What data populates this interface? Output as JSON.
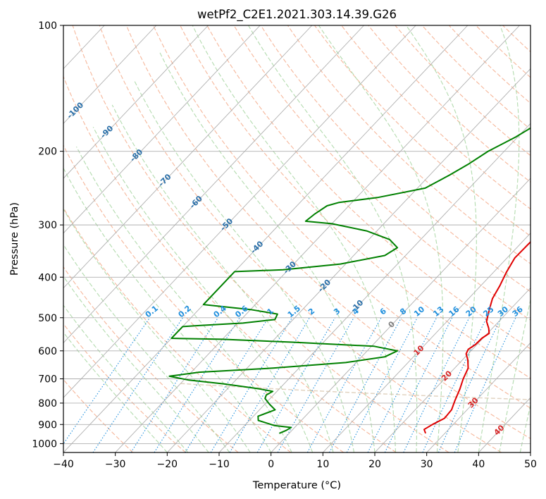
{
  "chart_data": {
    "type": "line",
    "subtype": "skew-T log-P thermodynamic diagram",
    "title": "wetPf2_C2E1.2021.303.14.39.G26",
    "xlabel": "Temperature (°C)",
    "ylabel": "Pressure (hPa)",
    "xlim": [
      -40,
      50
    ],
    "ylim": [
      1050,
      100
    ],
    "y_scale": "log",
    "x_ticks": [
      "−40",
      "−30",
      "−20",
      "−10",
      "0",
      "10",
      "20",
      "30",
      "40",
      "50"
    ],
    "y_ticks": [
      {
        "p": 100,
        "label": "100"
      },
      {
        "p": 200,
        "label": "200"
      },
      {
        "p": 300,
        "label": "300"
      },
      {
        "p": 400,
        "label": "400"
      },
      {
        "p": 500,
        "label": "500"
      },
      {
        "p": 600,
        "label": "600"
      },
      {
        "p": 700,
        "label": "700"
      },
      {
        "p": 800,
        "label": "800"
      },
      {
        "p": 900,
        "label": "900"
      },
      {
        "p": 1000,
        "label": "1000"
      }
    ],
    "grid": true,
    "legend": "none",
    "series": [
      {
        "role": "temperature",
        "color": "#e00000",
        "points": [
          {
            "p": 945,
            "t": 26.3
          },
          {
            "p": 925,
            "t": 25.3
          },
          {
            "p": 900,
            "t": 26.0
          },
          {
            "p": 870,
            "t": 27.2
          },
          {
            "p": 830,
            "t": 27.0
          },
          {
            "p": 790,
            "t": 26.0
          },
          {
            "p": 740,
            "t": 24.8
          },
          {
            "p": 700,
            "t": 23.6
          },
          {
            "p": 660,
            "t": 22.6
          },
          {
            "p": 630,
            "t": 21.0
          },
          {
            "p": 610,
            "t": 19.6
          },
          {
            "p": 595,
            "t": 19.2
          },
          {
            "p": 580,
            "t": 19.7
          },
          {
            "p": 560,
            "t": 19.8
          },
          {
            "p": 545,
            "t": 20.3
          },
          {
            "p": 530,
            "t": 19.3
          },
          {
            "p": 510,
            "t": 17.6
          },
          {
            "p": 490,
            "t": 16.6
          },
          {
            "p": 470,
            "t": 15.6
          },
          {
            "p": 450,
            "t": 14.6
          },
          {
            "p": 420,
            "t": 13.7
          },
          {
            "p": 390,
            "t": 12.5
          },
          {
            "p": 360,
            "t": 11.5
          },
          {
            "p": 330,
            "t": 11.6
          },
          {
            "p": 300,
            "t": 11.1
          },
          {
            "p": 270,
            "t": 10.6
          },
          {
            "p": 250,
            "t": 9.9
          },
          {
            "p": 230,
            "t": 8.3
          },
          {
            "p": 210,
            "t": 7.0
          },
          {
            "p": 190,
            "t": 5.1
          },
          {
            "p": 170,
            "t": 3.2
          },
          {
            "p": 150,
            "t": 2.6
          },
          {
            "p": 135,
            "t": 2.4
          },
          {
            "p": 120,
            "t": 3.3
          },
          {
            "p": 112,
            "t": 5.0
          },
          {
            "p": 106,
            "t": 6.3
          },
          {
            "p": 100,
            "t": 7.9
          }
        ]
      },
      {
        "role": "dewpoint",
        "color": "#008000",
        "points": [
          {
            "p": 945,
            "t": -1.9
          },
          {
            "p": 930,
            "t": -1.1
          },
          {
            "p": 915,
            "t": -0.7
          },
          {
            "p": 905,
            "t": -4.3
          },
          {
            "p": 880,
            "t": -8.3
          },
          {
            "p": 860,
            "t": -9.1
          },
          {
            "p": 830,
            "t": -7.0
          },
          {
            "p": 805,
            "t": -9.1
          },
          {
            "p": 780,
            "t": -11.0
          },
          {
            "p": 765,
            "t": -11.4
          },
          {
            "p": 750,
            "t": -10.8
          },
          {
            "p": 740,
            "t": -13.8
          },
          {
            "p": 720,
            "t": -21.5
          },
          {
            "p": 705,
            "t": -29.0
          },
          {
            "p": 690,
            "t": -33.5
          },
          {
            "p": 675,
            "t": -28.5
          },
          {
            "p": 660,
            "t": -15.0
          },
          {
            "p": 640,
            "t": -2.0
          },
          {
            "p": 620,
            "t": 4.5
          },
          {
            "p": 600,
            "t": 5.8
          },
          {
            "p": 585,
            "t": 0.5
          },
          {
            "p": 572,
            "t": -16.0
          },
          {
            "p": 563,
            "t": -30.0
          },
          {
            "p": 560,
            "t": -40.0
          },
          {
            "p": 525,
            "t": -40.0
          },
          {
            "p": 522,
            "t": -37.0
          },
          {
            "p": 515,
            "t": -29.0
          },
          {
            "p": 505,
            "t": -23.5
          },
          {
            "p": 490,
            "t": -24.0
          },
          {
            "p": 478,
            "t": -30.0
          },
          {
            "p": 465,
            "t": -40.0
          },
          {
            "p": 388,
            "t": -40.0
          },
          {
            "p": 384,
            "t": -31.0
          },
          {
            "p": 372,
            "t": -21.0
          },
          {
            "p": 355,
            "t": -14.0
          },
          {
            "p": 340,
            "t": -13.0
          },
          {
            "p": 325,
            "t": -16.0
          },
          {
            "p": 310,
            "t": -22.0
          },
          {
            "p": 298,
            "t": -30.0
          },
          {
            "p": 294,
            "t": -35.5
          },
          {
            "p": 283,
            "t": -35.1
          },
          {
            "p": 270,
            "t": -34.2
          },
          {
            "p": 265,
            "t": -32.5
          },
          {
            "p": 258,
            "t": -26.0
          },
          {
            "p": 245,
            "t": -18.5
          },
          {
            "p": 228,
            "t": -16.2
          },
          {
            "p": 215,
            "t": -14.6
          },
          {
            "p": 200,
            "t": -13.1
          },
          {
            "p": 185,
            "t": -10.4
          },
          {
            "p": 170,
            "t": -8.3
          },
          {
            "p": 155,
            "t": -7.7
          },
          {
            "p": 140,
            "t": -6.5
          },
          {
            "p": 128,
            "t": -5.1
          },
          {
            "p": 118,
            "t": -2.7
          },
          {
            "p": 108,
            "t": 0.2
          },
          {
            "p": 100,
            "t": 1.4
          }
        ]
      }
    ],
    "isotherm_labels": [
      "-100",
      "-90",
      "-80",
      "-70",
      "-60",
      "-50",
      "-40",
      "-30",
      "-20",
      "-10",
      "0",
      "10",
      "20",
      "30",
      "40"
    ],
    "mixing_ratio_labels": [
      "0.1",
      "0.2",
      "0.4",
      "0.6",
      "1",
      "1.5",
      "2",
      "3",
      "4",
      "6",
      "8",
      "10",
      "13",
      "16",
      "20",
      "25",
      "30",
      "36"
    ],
    "colors": {
      "temperature": "#e00000",
      "dewpoint": "#008000",
      "isotherm": "#b0b0b0",
      "isobar": "#b0b0b0",
      "dry_adiabat": "#f4a582",
      "moist_adiabat": "#a6d5a0",
      "mixing_ratio": "#1f8fdd",
      "isotherm_label_cold": "#2a6fa8",
      "isotherm_label_warm": "#d62728",
      "isotherm_label_zero": "#808080"
    }
  }
}
